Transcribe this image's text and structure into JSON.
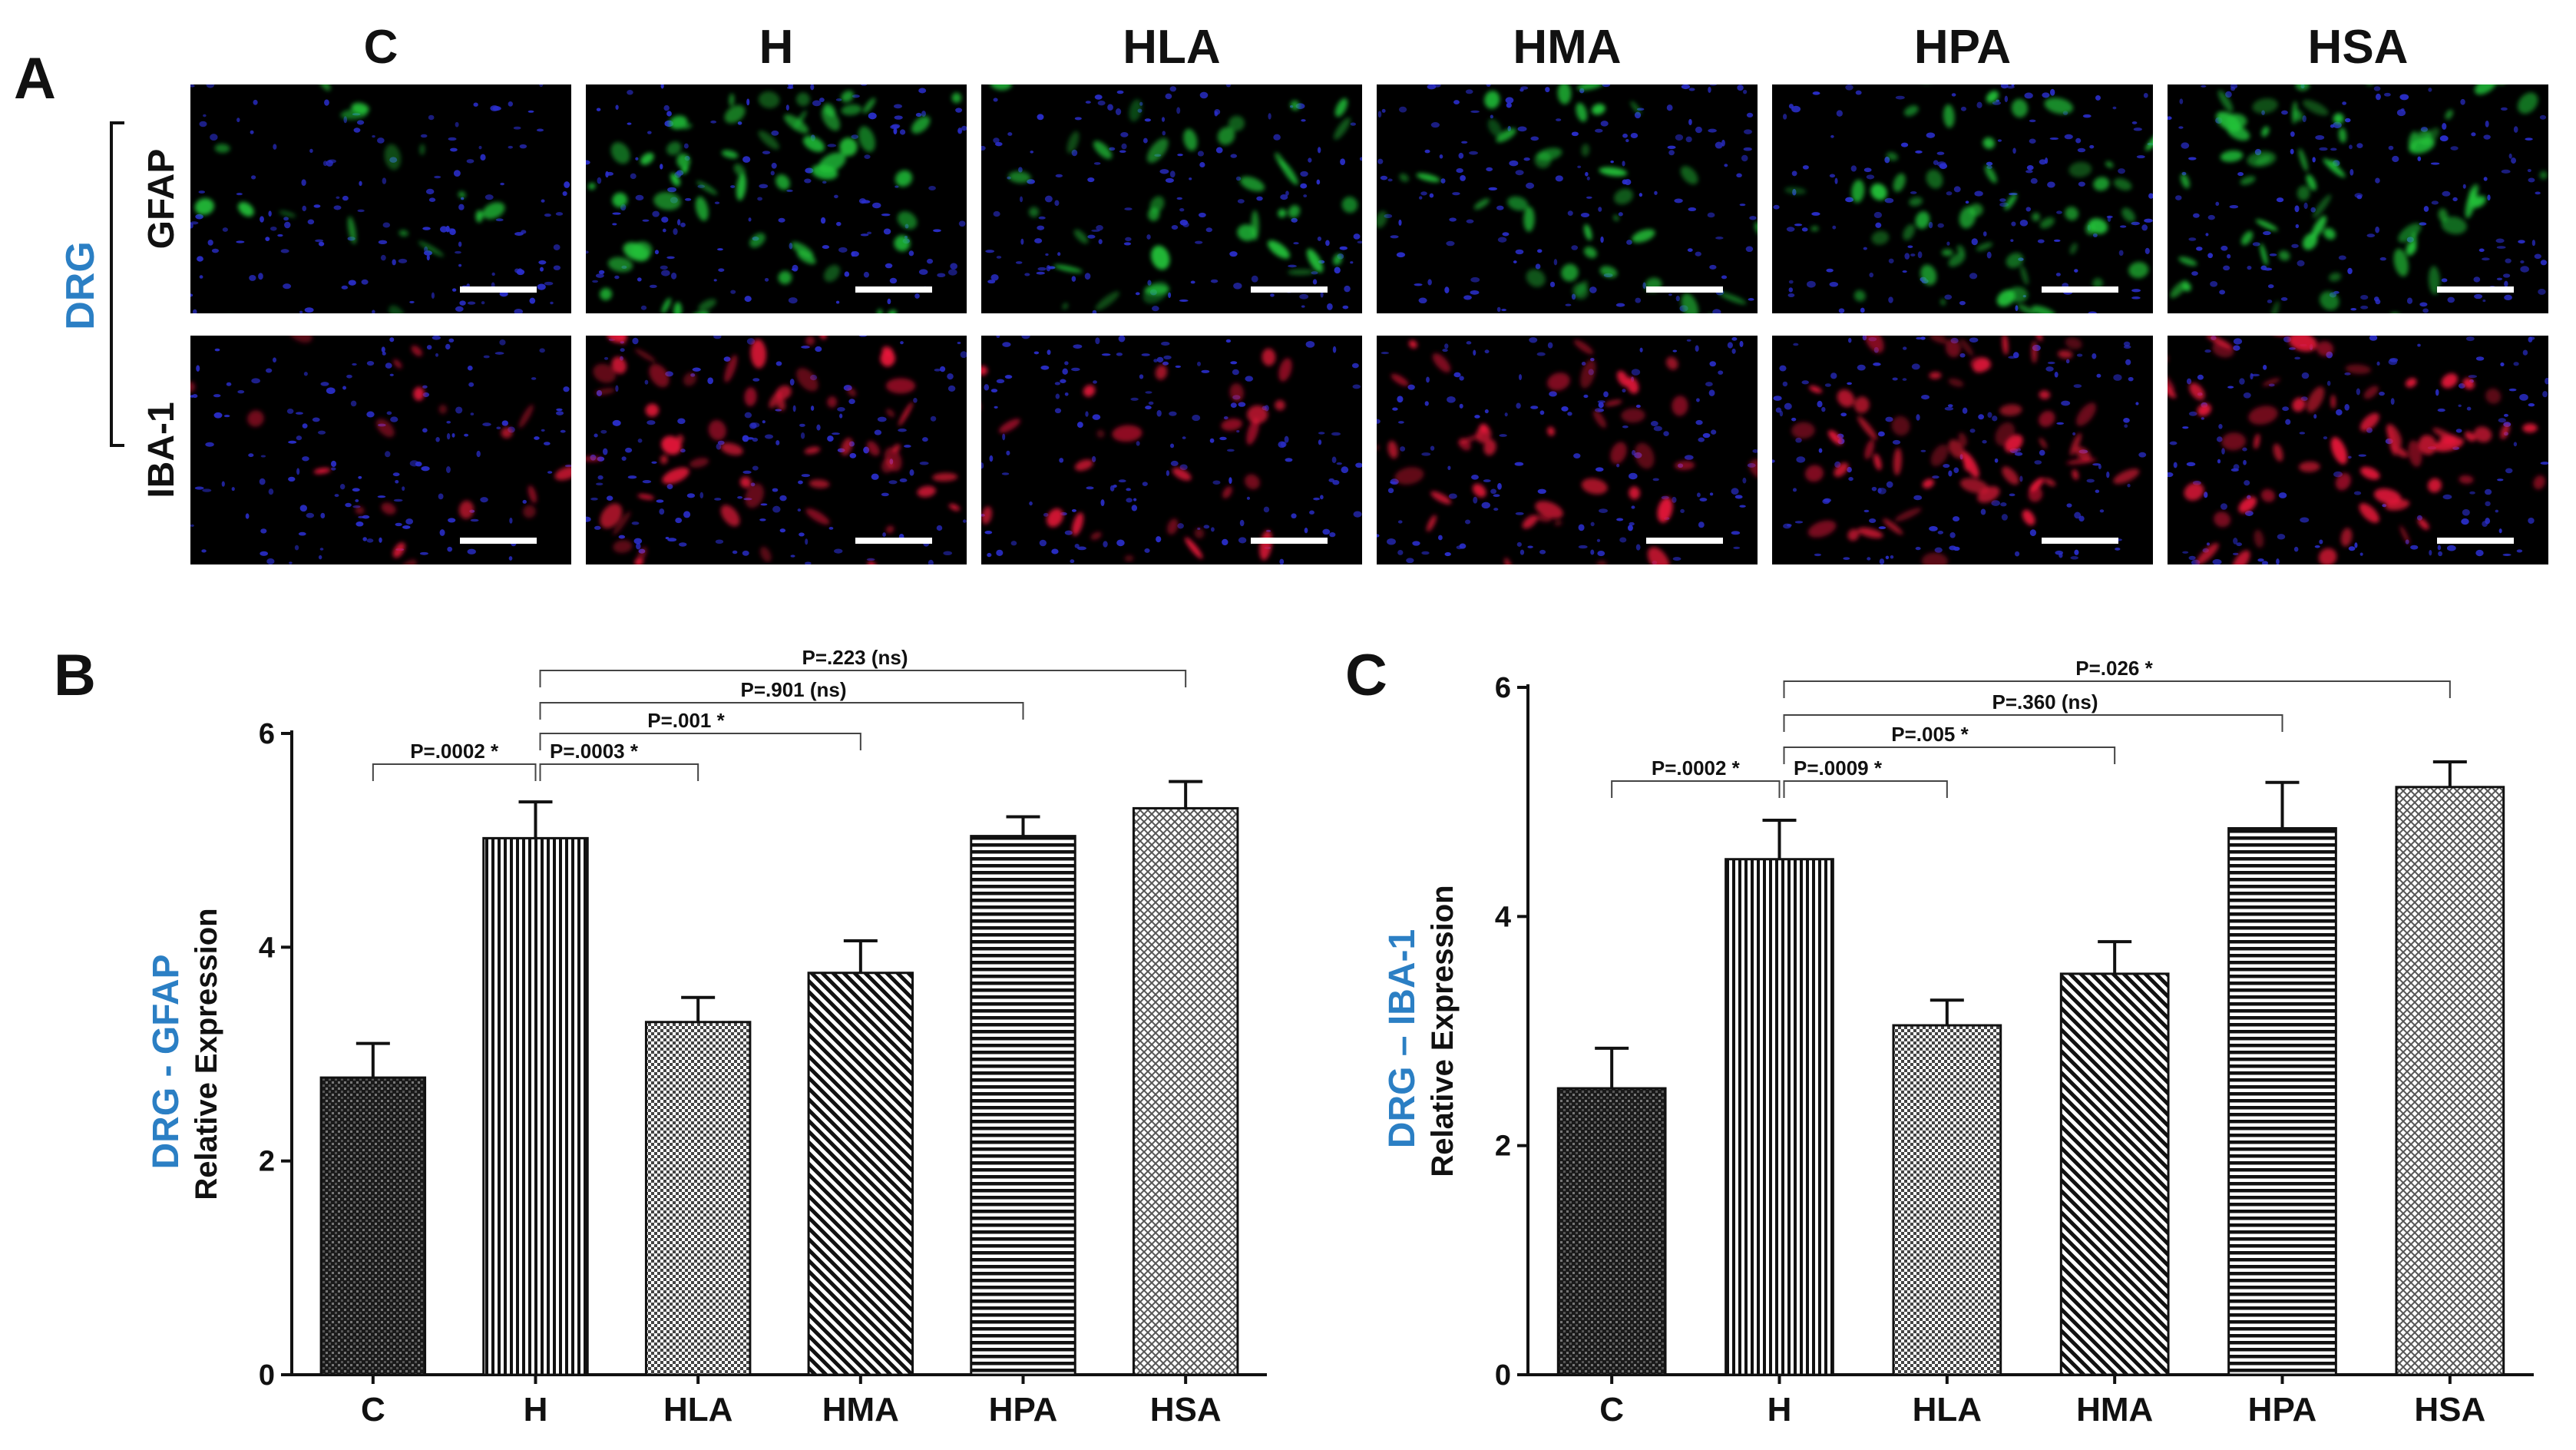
{
  "panel_a": {
    "letter": "A",
    "region_label": "DRG",
    "region_color": "#2b7fc4",
    "columns": [
      "C",
      "H",
      "HLA",
      "HMA",
      "HPA",
      "HSA"
    ],
    "rows": [
      {
        "label": "GFAP",
        "stain_color": "#22c43a",
        "intensity": [
          0.15,
          0.9,
          0.4,
          0.5,
          0.7,
          0.85
        ]
      },
      {
        "label": "IBA-1",
        "stain_color": "#e8193a",
        "intensity": [
          0.15,
          0.85,
          0.35,
          0.55,
          0.85,
          0.95
        ]
      }
    ],
    "background_color": "#000000",
    "nuclei_color": "#2b2fcf",
    "scale_bar_color": "#ffffff"
  },
  "chart_data": [
    {
      "panel": "B",
      "type": "bar",
      "region_label": "DRG",
      "marker_label": "GFAP",
      "ylabel_prefix": "DRG - GFAP",
      "ylabel": "Relative Expression",
      "categories": [
        "C",
        "H",
        "HLA",
        "HMA",
        "HPA",
        "HSA"
      ],
      "values": [
        2.78,
        5.02,
        3.3,
        3.76,
        5.04,
        5.3
      ],
      "errors": [
        0.32,
        0.34,
        0.23,
        0.3,
        0.18,
        0.25
      ],
      "ylim": [
        0,
        6
      ],
      "yticks": [
        0,
        2,
        4,
        6
      ],
      "patterns": [
        "dense-dots",
        "vertical",
        "checker",
        "diag-back",
        "horizontal",
        "crosshatch"
      ],
      "comparisons": [
        {
          "from": 0,
          "to": 1,
          "label": "P=.0002 *"
        },
        {
          "from": 1,
          "to": 2,
          "label": "P=.0003 *"
        },
        {
          "from": 1,
          "to": 3,
          "label": "P=.001 *"
        },
        {
          "from": 1,
          "to": 4,
          "label": "P=.901 (ns)"
        },
        {
          "from": 1,
          "to": 5,
          "label": "P=.223 (ns)"
        }
      ]
    },
    {
      "panel": "C",
      "type": "bar",
      "region_label": "DRG",
      "marker_label": "IBA-1",
      "ylabel_prefix": "DRG – IBA-1",
      "ylabel": "Relative Expression",
      "categories": [
        "C",
        "H",
        "HLA",
        "HMA",
        "HPA",
        "HSA"
      ],
      "values": [
        2.5,
        4.5,
        3.05,
        3.5,
        4.77,
        5.13
      ],
      "errors": [
        0.35,
        0.34,
        0.22,
        0.28,
        0.4,
        0.22
      ],
      "ylim": [
        0,
        6
      ],
      "yticks": [
        0,
        2,
        4,
        6
      ],
      "patterns": [
        "dense-dots",
        "vertical",
        "checker",
        "diag-back",
        "horizontal",
        "crosshatch"
      ],
      "comparisons": [
        {
          "from": 0,
          "to": 1,
          "label": "P=.0002 *"
        },
        {
          "from": 1,
          "to": 2,
          "label": "P=.0009 *"
        },
        {
          "from": 1,
          "to": 3,
          "label": "P=.005 *"
        },
        {
          "from": 1,
          "to": 4,
          "label": "P=.360 (ns)"
        },
        {
          "from": 1,
          "to": 5,
          "label": "P=.026 *"
        }
      ]
    }
  ],
  "panel_letters": {
    "b": "B",
    "c": "C"
  }
}
